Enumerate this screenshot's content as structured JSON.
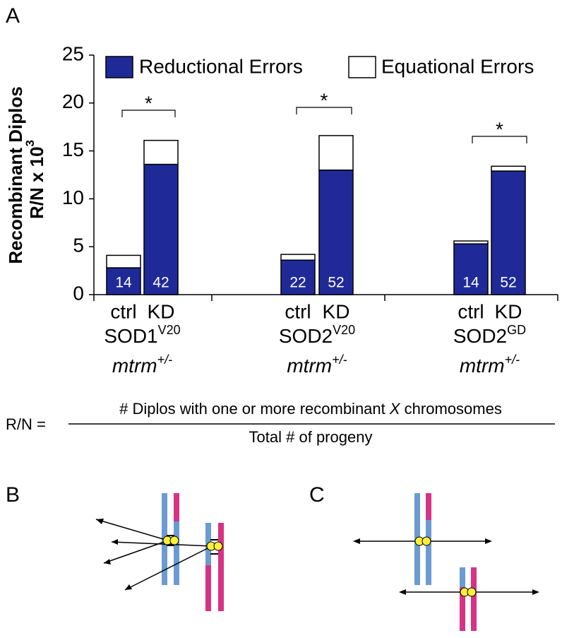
{
  "panel_labels": [
    "A",
    "B",
    "C"
  ],
  "chart_data": {
    "type": "stacked_bar",
    "ylabel": [
      "Recombinant Diplos",
      "R/N x 10"
    ],
    "ylabel_sup": "3",
    "categories": [
      "ctrl",
      "KD",
      "ctrl",
      "KD",
      "ctrl",
      "KD"
    ],
    "groups": [
      {
        "name": "SOD1",
        "sup": "V20",
        "genotype": "mtrm",
        "genotype_sup": "+/-",
        "significance": "*"
      },
      {
        "name": "SOD2",
        "sup": "V20",
        "genotype": "mtrm",
        "genotype_sup": "+/-",
        "significance": "*"
      },
      {
        "name": "SOD2",
        "sup": "GD",
        "genotype": "mtrm",
        "genotype_sup": "+/-",
        "significance": "*"
      }
    ],
    "series": [
      {
        "name": "Reductional Errors",
        "color": "#1f2a98",
        "values": [
          2.8,
          13.6,
          3.6,
          13.0,
          5.3,
          12.9
        ]
      },
      {
        "name": "Equational Errors",
        "color": "#ffffff",
        "values": [
          1.3,
          2.5,
          0.6,
          3.6,
          0.3,
          0.5
        ]
      }
    ],
    "n_labels": [
      14,
      42,
      22,
      52,
      14,
      52
    ],
    "ylim": [
      0,
      25
    ],
    "yticks": [
      0,
      5,
      10,
      15,
      20,
      25
    ]
  },
  "formula": {
    "lhs": "R/N =",
    "numerator": [
      "# Diplos with one or more recombinant ",
      "X",
      " chromosomes"
    ],
    "denominator": "Total # of progeny"
  }
}
